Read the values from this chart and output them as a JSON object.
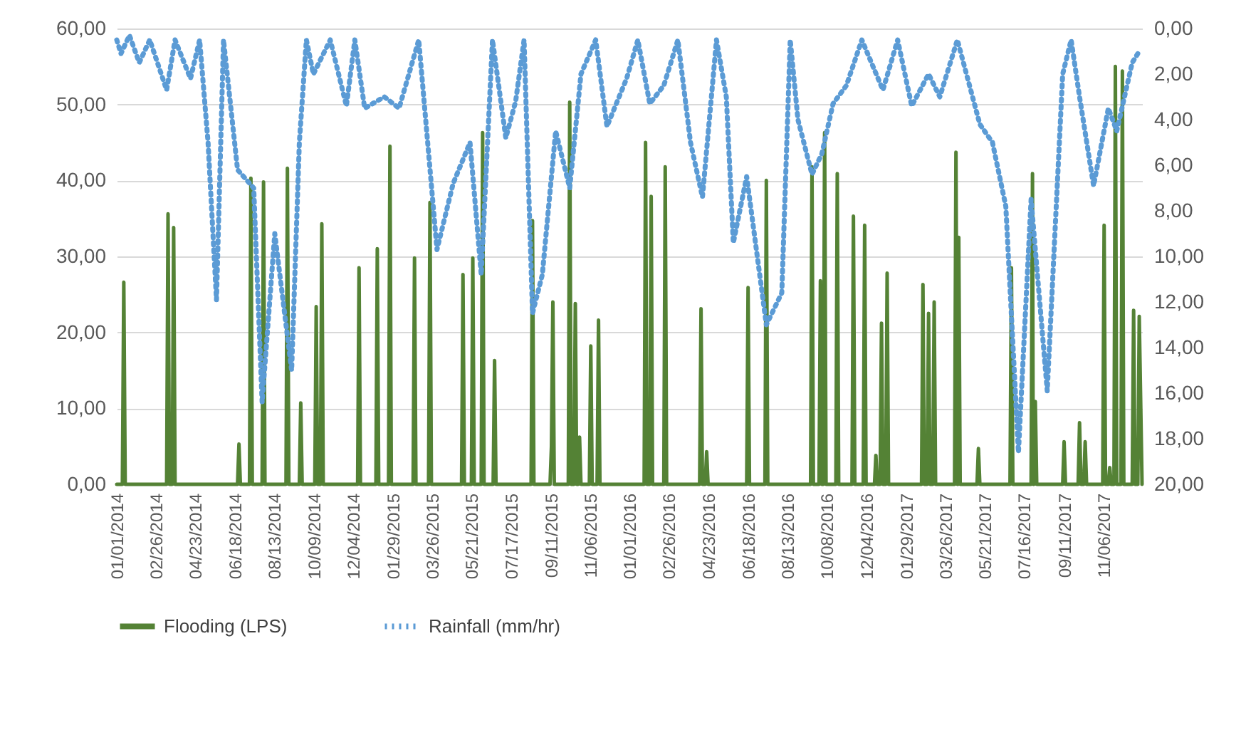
{
  "chart_data": {
    "type": "line",
    "xlim": [
      "2014-01-01",
      "2017-12-31"
    ],
    "xticks": [
      {
        "value": "2014-01-01",
        "label": "01/01/2014"
      },
      {
        "value": "2014-02-26",
        "label": "02/26/2014"
      },
      {
        "value": "2014-04-23",
        "label": "04/23/2014"
      },
      {
        "value": "2014-06-18",
        "label": "06/18/2014"
      },
      {
        "value": "2014-08-13",
        "label": "08/13/2014"
      },
      {
        "value": "2014-10-09",
        "label": "10/09/2014"
      },
      {
        "value": "2014-12-04",
        "label": "12/04/2014"
      },
      {
        "value": "2015-01-29",
        "label": "01/29/2015"
      },
      {
        "value": "2015-03-26",
        "label": "03/26/2015"
      },
      {
        "value": "2015-05-21",
        "label": "05/21/2015"
      },
      {
        "value": "2015-07-17",
        "label": "07/17/2015"
      },
      {
        "value": "2015-09-11",
        "label": "09/11/2015"
      },
      {
        "value": "2015-11-06",
        "label": "11/06/2015"
      },
      {
        "value": "2016-01-01",
        "label": "01/01/2016"
      },
      {
        "value": "2016-02-26",
        "label": "02/26/2016"
      },
      {
        "value": "2016-04-23",
        "label": "04/23/2016"
      },
      {
        "value": "2016-06-18",
        "label": "06/18/2016"
      },
      {
        "value": "2016-08-13",
        "label": "08/13/2016"
      },
      {
        "value": "2016-10-08",
        "label": "10/08/2016"
      },
      {
        "value": "2016-12-04",
        "label": "12/04/2016"
      },
      {
        "value": "2017-01-29",
        "label": "01/29/2017"
      },
      {
        "value": "2017-03-26",
        "label": "03/26/2017"
      },
      {
        "value": "2017-05-21",
        "label": "05/21/2017"
      },
      {
        "value": "2017-07-16",
        "label": "07/16/2017"
      },
      {
        "value": "2017-09-11",
        "label": "09/11/2017"
      },
      {
        "value": "2017-11-06",
        "label": "11/06/2017"
      }
    ],
    "ylim": [
      0,
      60
    ],
    "yticks": [
      {
        "value": 0,
        "label": "0,00"
      },
      {
        "value": 10,
        "label": "10,00"
      },
      {
        "value": 20,
        "label": "20,00"
      },
      {
        "value": 30,
        "label": "30,00"
      },
      {
        "value": 40,
        "label": "40,00"
      },
      {
        "value": 50,
        "label": "50,00"
      },
      {
        "value": 60,
        "label": "60,00"
      }
    ],
    "y2lim": [
      20,
      0
    ],
    "y2ticks": [
      {
        "value": 0,
        "label": "0,00"
      },
      {
        "value": 2,
        "label": "2,00"
      },
      {
        "value": 4,
        "label": "4,00"
      },
      {
        "value": 6,
        "label": "6,00"
      },
      {
        "value": 8,
        "label": "8,00"
      },
      {
        "value": 10,
        "label": "10,00"
      },
      {
        "value": 12,
        "label": "12,00"
      },
      {
        "value": 14,
        "label": "14,00"
      },
      {
        "value": 16,
        "label": "16,00"
      },
      {
        "value": 18,
        "label": "18,00"
      },
      {
        "value": 20,
        "label": "20,00"
      }
    ],
    "grid": "y",
    "legend": "bottom",
    "series": [
      {
        "name": "Flooding (LPS)",
        "color": "#548235",
        "line_style": "solid",
        "x": [
          "2014-01-01",
          "2014-01-09",
          "2014-01-11",
          "2014-01-13",
          "2014-03-13",
          "2014-03-15",
          "2014-03-17",
          "2014-03-21",
          "2014-03-23",
          "2014-03-25",
          "2014-06-22",
          "2014-06-24",
          "2014-06-26",
          "2014-07-09",
          "2014-07-11",
          "2014-07-13",
          "2014-07-27",
          "2014-07-29",
          "2014-07-31",
          "2014-08-30",
          "2014-09-01",
          "2014-09-03",
          "2014-09-18",
          "2014-09-20",
          "2014-09-22",
          "2014-10-10",
          "2014-10-12",
          "2014-10-14",
          "2014-10-18",
          "2014-10-20",
          "2014-10-22",
          "2014-12-10",
          "2014-12-12",
          "2014-12-14",
          "2015-01-05",
          "2015-01-07",
          "2015-01-09",
          "2015-01-23",
          "2015-01-25",
          "2015-01-27",
          "2015-02-27",
          "2015-03-01",
          "2015-03-03",
          "2015-03-21",
          "2015-03-23",
          "2015-03-25",
          "2015-05-07",
          "2015-05-09",
          "2015-05-11",
          "2015-05-21",
          "2015-05-23",
          "2015-05-25",
          "2015-06-04",
          "2015-06-06",
          "2015-06-08",
          "2015-06-21",
          "2015-06-23",
          "2015-06-25",
          "2015-08-14",
          "2015-08-16",
          "2015-08-18",
          "2015-09-10",
          "2015-09-12",
          "2015-09-14",
          "2015-09-16",
          "2015-10-06",
          "2015-10-08",
          "2015-10-10",
          "2015-10-14",
          "2015-10-16",
          "2015-10-18",
          "2015-10-20",
          "2015-10-22",
          "2015-10-24",
          "2015-11-05",
          "2015-11-07",
          "2015-11-09",
          "2015-11-16",
          "2015-11-18",
          "2015-11-20",
          "2016-01-22",
          "2016-01-24",
          "2016-01-26",
          "2016-01-30",
          "2016-02-01",
          "2016-02-03",
          "2016-02-19",
          "2016-02-21",
          "2016-02-23",
          "2016-04-10",
          "2016-04-12",
          "2016-04-14",
          "2016-04-18",
          "2016-04-20",
          "2016-04-22",
          "2016-06-16",
          "2016-06-18",
          "2016-06-20",
          "2016-07-12",
          "2016-07-14",
          "2016-07-16",
          "2016-09-15",
          "2016-09-17",
          "2016-09-19",
          "2016-09-27",
          "2016-09-29",
          "2016-10-01",
          "2016-10-03",
          "2016-10-05",
          "2016-10-07",
          "2016-10-21",
          "2016-10-23",
          "2016-10-25",
          "2016-11-13",
          "2016-11-15",
          "2016-11-17",
          "2016-11-29",
          "2016-12-01",
          "2016-12-03",
          "2016-12-15",
          "2016-12-17",
          "2016-12-19",
          "2016-12-23",
          "2016-12-25",
          "2016-12-27",
          "2016-12-31",
          "2017-01-02",
          "2017-01-04",
          "2017-02-20",
          "2017-02-22",
          "2017-02-24",
          "2017-02-28",
          "2017-03-02",
          "2017-03-04",
          "2017-03-08",
          "2017-03-10",
          "2017-03-12",
          "2017-04-08",
          "2017-04-10",
          "2017-04-12",
          "2017-04-13",
          "2017-04-14",
          "2017-04-16",
          "2017-05-10",
          "2017-05-12",
          "2017-05-14",
          "2017-06-26",
          "2017-06-28",
          "2017-06-30",
          "2017-07-26",
          "2017-07-28",
          "2017-07-29",
          "2017-07-30",
          "2017-08-01",
          "2017-08-03",
          "2017-09-09",
          "2017-09-11",
          "2017-09-13",
          "2017-10-01",
          "2017-10-03",
          "2017-10-05",
          "2017-10-09",
          "2017-10-11",
          "2017-10-13",
          "2017-11-05",
          "2017-11-07",
          "2017-11-09",
          "2017-11-13",
          "2017-11-15",
          "2017-11-17",
          "2017-11-21",
          "2017-11-23",
          "2017-11-25",
          "2017-12-01",
          "2017-12-03",
          "2017-12-05",
          "2017-12-17",
          "2017-12-19",
          "2017-12-21",
          "2017-12-25",
          "2017-12-27",
          "2017-12-31"
        ],
        "values": [
          0,
          0,
          26.6,
          0,
          0,
          35.6,
          0,
          0,
          33.8,
          0,
          0,
          5.3,
          0,
          0,
          40.3,
          0,
          0,
          39.8,
          0,
          0,
          41.6,
          0,
          0,
          10.7,
          0,
          0,
          23.4,
          0,
          0,
          34.3,
          0,
          0,
          28.5,
          0,
          0,
          31,
          0,
          0,
          44.5,
          0,
          0,
          29.8,
          0,
          0,
          37.1,
          0,
          0,
          27.6,
          0,
          0,
          29.8,
          0,
          0,
          46.3,
          0,
          0,
          16.3,
          0,
          0,
          34.7,
          0,
          0,
          5,
          24,
          0,
          0,
          50.3,
          0,
          0,
          23.8,
          0,
          0,
          6.2,
          0,
          0,
          18.2,
          0,
          0,
          21.6,
          0,
          0,
          45,
          0,
          0,
          37.9,
          0,
          0,
          41.8,
          0,
          0,
          23.1,
          0,
          0,
          4.3,
          0,
          0,
          25.9,
          0,
          0,
          40,
          0,
          0,
          41.8,
          0,
          0,
          26.8,
          0,
          0,
          46.3,
          0,
          0,
          40.9,
          0,
          0,
          35.3,
          0,
          0,
          34.1,
          0,
          0,
          3.8,
          0,
          0,
          21.2,
          0,
          0,
          27.8,
          0,
          0,
          26.3,
          0,
          0,
          22.5,
          0,
          0,
          24,
          0,
          0,
          43.7,
          0,
          0,
          32.5,
          0,
          0,
          4.7,
          0,
          0,
          28.5,
          0,
          0,
          40.9,
          0,
          0,
          10.9,
          0,
          0,
          5.6,
          0,
          0,
          8.1,
          0,
          0,
          5.6,
          0,
          0,
          34.1,
          0,
          0,
          2.2,
          0,
          0,
          55,
          0,
          0,
          54.4,
          0,
          0,
          22.9,
          0,
          0,
          22.1,
          0
        ]
      },
      {
        "name": "Rainfall (mm/hr)",
        "color": "#5b9bd5",
        "axis": "y2",
        "line_style": "dotted",
        "x": [
          "2014-01-01",
          "2014-01-07",
          "2014-01-19",
          "2014-02-02",
          "2014-02-17",
          "2014-03-13",
          "2014-03-25",
          "2014-04-16",
          "2014-04-29",
          "2014-05-11",
          "2014-05-23",
          "2014-06-02",
          "2014-06-22",
          "2014-07-15",
          "2014-07-27",
          "2014-08-14",
          "2014-09-07",
          "2014-09-18",
          "2014-09-28",
          "2014-10-08",
          "2014-11-01",
          "2014-11-24",
          "2014-12-06",
          "2014-12-20",
          "2015-01-17",
          "2015-02-07",
          "2015-03-07",
          "2015-04-02",
          "2015-04-25",
          "2015-05-19",
          "2015-06-04",
          "2015-06-20",
          "2015-07-09",
          "2015-07-23",
          "2015-08-04",
          "2015-08-16",
          "2015-08-30",
          "2015-09-18",
          "2015-10-08",
          "2015-10-24",
          "2015-11-14",
          "2015-11-30",
          "2015-12-28",
          "2016-01-13",
          "2016-01-30",
          "2016-02-19",
          "2016-03-10",
          "2016-03-28",
          "2016-04-14",
          "2016-05-04",
          "2016-05-18",
          "2016-05-28",
          "2016-06-16",
          "2016-07-14",
          "2016-08-05",
          "2016-08-17",
          "2016-08-28",
          "2016-09-17",
          "2016-10-01",
          "2016-10-17",
          "2016-11-05",
          "2016-11-27",
          "2016-12-27",
          "2017-01-17",
          "2017-02-06",
          "2017-03-02",
          "2017-03-18",
          "2017-04-12",
          "2017-05-14",
          "2017-06-01",
          "2017-06-20",
          "2017-07-08",
          "2017-07-26",
          "2017-08-18",
          "2017-09-09",
          "2017-09-21",
          "2017-10-03",
          "2017-10-23",
          "2017-11-13",
          "2017-11-25",
          "2017-12-17",
          "2017-12-27"
        ],
        "values": [
          0.5,
          1.1,
          0.3,
          1.5,
          0.5,
          2.7,
          0.5,
          2.2,
          0.5,
          5,
          11.9,
          0.5,
          6.2,
          7,
          16.4,
          9,
          15,
          5,
          0.5,
          2,
          0.5,
          3.4,
          0.5,
          3.5,
          3,
          3.5,
          0.5,
          9.7,
          6.8,
          5,
          10.8,
          0.5,
          4.8,
          3.2,
          0.5,
          12.5,
          10.8,
          4.5,
          7,
          2,
          0.5,
          4.3,
          2.2,
          0.5,
          3.3,
          2.5,
          0.5,
          5,
          7.4,
          0.5,
          3,
          9.4,
          6.5,
          13,
          11.6,
          0.5,
          4,
          6.4,
          5.5,
          3.3,
          2.5,
          0.5,
          2.7,
          0.5,
          3.4,
          2,
          3,
          0.5,
          4.2,
          5,
          7.8,
          18.6,
          7.5,
          15.9,
          2,
          0.5,
          3,
          6.9,
          3.5,
          4.5,
          1.5,
          1
        ]
      }
    ]
  }
}
